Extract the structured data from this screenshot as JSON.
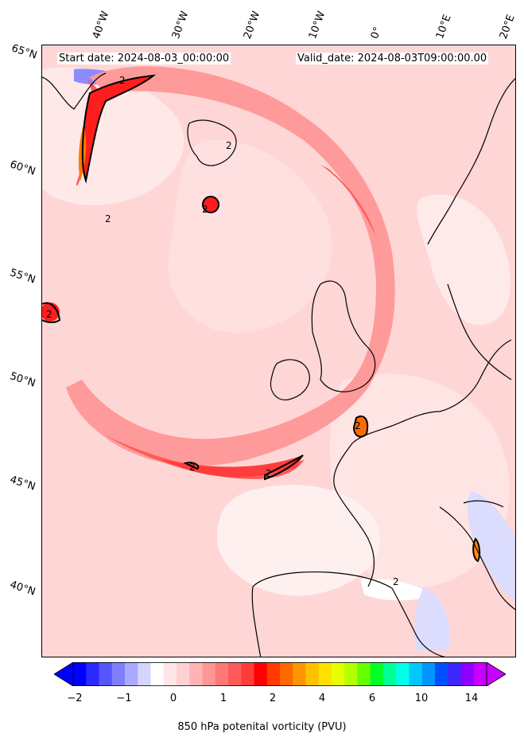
{
  "header": {
    "start_date": "Start date: 2024-08-03_00:00:00",
    "valid_date": "Valid_date: 2024-08-03T09:00:00.00"
  },
  "axes": {
    "longitude_labels": [
      "40°W",
      "30°W",
      "20°W",
      "10°W",
      "0°",
      "10°E",
      "20°E"
    ],
    "latitude_labels": [
      "65°N",
      "60°N",
      "55°N",
      "50°N",
      "45°N",
      "40°N"
    ]
  },
  "colorbar": {
    "label": "850 hPa potenital vorticity (PVU)",
    "ticks": [
      "−2",
      "−1",
      "0",
      "1",
      "2",
      "4",
      "6",
      "10",
      "14"
    ],
    "colors": [
      "#0000ff",
      "#2a2aff",
      "#5555ff",
      "#7f7fff",
      "#a9a9ff",
      "#d4d4ff",
      "#ffffff",
      "#ffe6e6",
      "#ffd2d2",
      "#ffb4b4",
      "#ff9696",
      "#ff7878",
      "#ff5a5a",
      "#ff3c3c",
      "#ff0000",
      "#ff3a00",
      "#ff6a00",
      "#ff9600",
      "#ffc000",
      "#ffe000",
      "#e6ff00",
      "#b4ff00",
      "#64ff00",
      "#00ff28",
      "#00ff96",
      "#00ffe6",
      "#00c8ff",
      "#0096ff",
      "#0050ff",
      "#3c28ff",
      "#8c00ff",
      "#c800ff"
    ],
    "extend": "both"
  },
  "contour_labels": [
    "2",
    "2",
    "2",
    "2",
    "2",
    "2",
    "2",
    "2",
    "2"
  ]
}
